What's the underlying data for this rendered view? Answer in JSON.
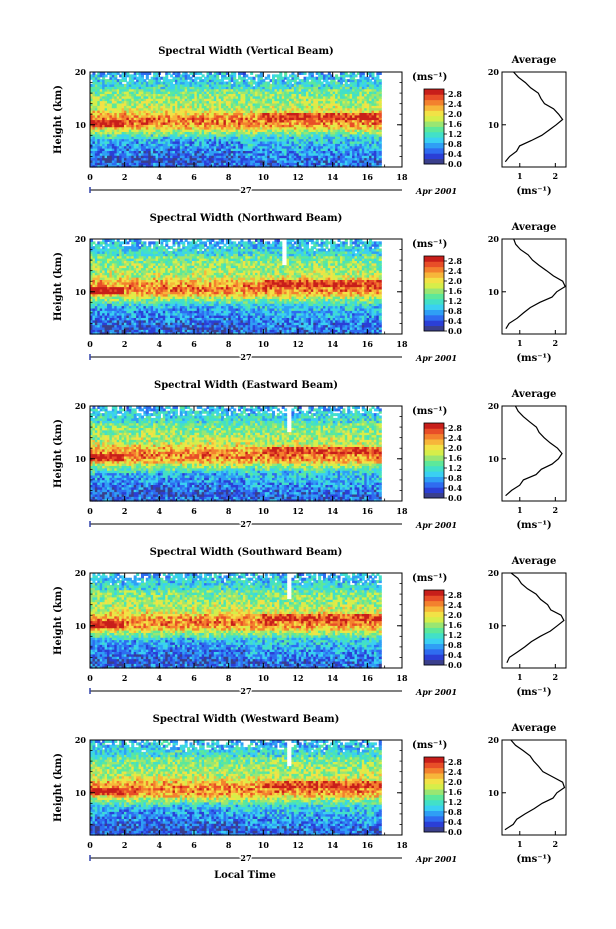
{
  "figure": {
    "x_label": "Local Time",
    "date_label": "27",
    "date_suffix": "Apr 2001",
    "avg_title": "Average",
    "unit_label": "(ms⁻¹)",
    "y_label": "Height (km)"
  },
  "colors": {
    "scale": [
      "#3a3f8c",
      "#2b3fd6",
      "#2f6cf0",
      "#2f9ff5",
      "#3ad0f2",
      "#42e0c8",
      "#5de89a",
      "#9ae672",
      "#d6ee4a",
      "#f2e246",
      "#f7b63a",
      "#f3812e",
      "#e84e28",
      "#c81e1a"
    ]
  },
  "chart_data": [
    {
      "type": "heatmap",
      "title": "Spectral Width (Vertical Beam)",
      "x_range": [
        0,
        18
      ],
      "x_ticks": [
        0,
        2,
        4,
        6,
        8,
        10,
        12,
        14,
        16,
        18
      ],
      "y_range": [
        2,
        20
      ],
      "y_ticks": [
        10,
        20
      ],
      "colorbar_ticks": [
        "0.0",
        "0.4",
        "0.8",
        "1.2",
        "1.6",
        "2.0",
        "2.4",
        "2.8"
      ],
      "colorbar_range": [
        0,
        3.0
      ],
      "data_x_end": 16.8,
      "gap_x": null,
      "average_profile": {
        "x_ticks": [
          1,
          2
        ],
        "x_range": [
          0.5,
          2.3
        ],
        "heights": [
          3,
          4,
          5,
          6,
          7,
          8,
          9,
          10,
          11,
          12,
          13,
          14,
          15,
          16,
          17,
          18,
          19,
          20
        ],
        "values": [
          0.55,
          0.7,
          0.85,
          1.05,
          1.3,
          1.6,
          1.85,
          2.05,
          2.2,
          2.1,
          1.9,
          1.75,
          1.6,
          1.55,
          1.3,
          1.1,
          0.95,
          0.85
        ]
      }
    },
    {
      "type": "heatmap",
      "title": "Spectral Width (Northward Beam)",
      "x_range": [
        0,
        18
      ],
      "x_ticks": [
        0,
        2,
        4,
        6,
        8,
        10,
        12,
        14,
        16,
        18
      ],
      "y_range": [
        2,
        20
      ],
      "y_ticks": [
        10,
        20
      ],
      "colorbar_ticks": [
        "0.0",
        "0.4",
        "0.8",
        "1.2",
        "1.6",
        "2.0",
        "2.4",
        "2.8"
      ],
      "colorbar_range": [
        0,
        3.0
      ],
      "data_x_end": 16.8,
      "gap_x": 11.2,
      "average_profile": {
        "x_ticks": [
          1,
          2
        ],
        "x_range": [
          0.5,
          2.3
        ],
        "heights": [
          3,
          4,
          5,
          6,
          7,
          8,
          9,
          10,
          11,
          12,
          13,
          14,
          15,
          16,
          17,
          18,
          19,
          20
        ],
        "values": [
          0.6,
          0.75,
          0.9,
          1.1,
          1.35,
          1.6,
          1.85,
          2.05,
          2.25,
          2.15,
          1.9,
          1.7,
          1.5,
          1.4,
          1.2,
          1.05,
          0.9,
          0.8
        ]
      }
    },
    {
      "type": "heatmap",
      "title": "Spectral Width (Eastward Beam)",
      "x_range": [
        0,
        18
      ],
      "x_ticks": [
        0,
        2,
        4,
        6,
        8,
        10,
        12,
        14,
        16,
        18
      ],
      "y_range": [
        2,
        20
      ],
      "y_ticks": [
        10,
        20
      ],
      "colorbar_ticks": [
        "0.0",
        "0.4",
        "0.8",
        "1.2",
        "1.6",
        "2.0",
        "2.4",
        "2.8"
      ],
      "colorbar_range": [
        0,
        3.0
      ],
      "data_x_end": 16.8,
      "gap_x": 11.5,
      "average_profile": {
        "x_ticks": [
          1,
          2
        ],
        "x_range": [
          0.5,
          2.3
        ],
        "heights": [
          3,
          4,
          5,
          6,
          7,
          8,
          9,
          10,
          11,
          12,
          13,
          14,
          15,
          16,
          17,
          18,
          19,
          20
        ],
        "values": [
          0.6,
          0.8,
          0.95,
          1.15,
          1.4,
          1.65,
          1.9,
          2.1,
          2.2,
          2.1,
          1.85,
          1.7,
          1.55,
          1.5,
          1.3,
          1.1,
          0.95,
          0.85
        ]
      }
    },
    {
      "type": "heatmap",
      "title": "Spectral Width (Southward Beam)",
      "x_range": [
        0,
        18
      ],
      "x_ticks": [
        0,
        2,
        4,
        6,
        8,
        10,
        12,
        14,
        16,
        18
      ],
      "y_range": [
        2,
        20
      ],
      "y_ticks": [
        10,
        20
      ],
      "colorbar_ticks": [
        "0.0",
        "0.4",
        "0.8",
        "1.2",
        "1.6",
        "2.0",
        "2.4",
        "2.8"
      ],
      "colorbar_range": [
        0,
        3.0
      ],
      "data_x_end": 16.8,
      "gap_x": 11.5,
      "average_profile": {
        "x_ticks": [
          1,
          2
        ],
        "x_range": [
          0.5,
          2.3
        ],
        "heights": [
          3,
          4,
          5,
          6,
          7,
          8,
          9,
          10,
          11,
          12,
          13,
          14,
          15,
          16,
          17,
          18,
          19,
          20
        ],
        "values": [
          0.6,
          0.75,
          0.9,
          1.1,
          1.35,
          1.6,
          1.85,
          2.05,
          2.2,
          2.15,
          1.9,
          1.75,
          1.55,
          1.45,
          1.25,
          1.05,
          0.9,
          0.8
        ]
      }
    },
    {
      "type": "heatmap",
      "title": "Spectral Width (Westward Beam)",
      "x_range": [
        0,
        18
      ],
      "x_ticks": [
        0,
        2,
        4,
        6,
        8,
        10,
        12,
        14,
        16,
        18
      ],
      "y_range": [
        2,
        20
      ],
      "y_ticks": [
        10,
        20
      ],
      "colorbar_ticks": [
        "0.0",
        "0.4",
        "0.8",
        "1.2",
        "1.6",
        "2.0",
        "2.4",
        "2.8"
      ],
      "colorbar_range": [
        0,
        3.0
      ],
      "data_x_end": 16.8,
      "gap_x": 11.5,
      "average_profile": {
        "x_ticks": [
          1,
          2
        ],
        "x_range": [
          0.5,
          2.3
        ],
        "heights": [
          3,
          4,
          5,
          6,
          7,
          8,
          9,
          10,
          11,
          12,
          13,
          14,
          15,
          16,
          17,
          18,
          19,
          20
        ],
        "values": [
          0.6,
          0.8,
          0.95,
          1.15,
          1.4,
          1.65,
          1.9,
          2.1,
          2.25,
          2.15,
          1.9,
          1.7,
          1.5,
          1.4,
          1.25,
          1.05,
          0.9,
          0.8
        ]
      }
    }
  ]
}
